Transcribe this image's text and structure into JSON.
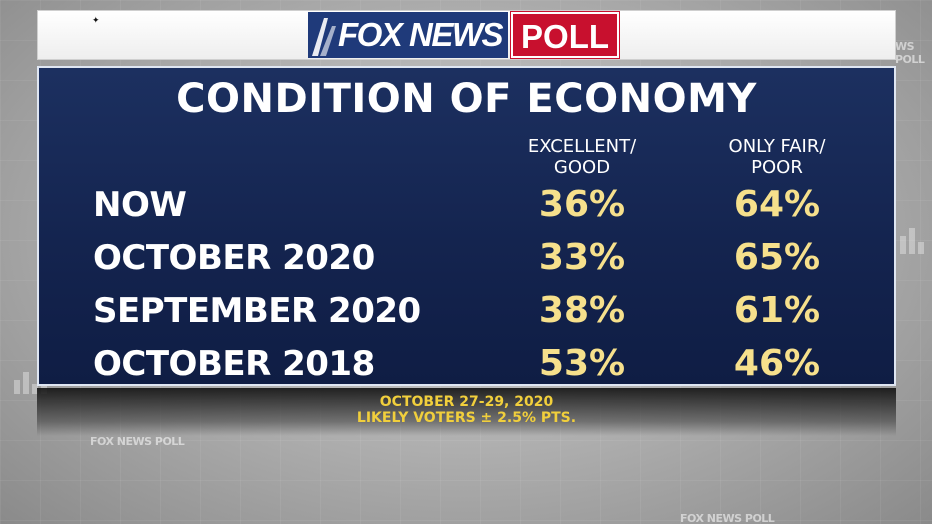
{
  "branding": {
    "logo_fox": "FOX NEWS",
    "logo_poll": "POLL",
    "colors": {
      "fox_blue": "#1f3a7a",
      "poll_red": "#c8102e",
      "value_yellow": "#f6e08c",
      "footer_yellow": "#f1cf3c"
    }
  },
  "chart_data": {
    "type": "table",
    "title": "CONDITION OF ECONOMY",
    "columns": [
      "EXCELLENT/ GOOD",
      "ONLY FAIR/ POOR"
    ],
    "rows": [
      {
        "label": "NOW",
        "values": [
          "36%",
          "64%"
        ]
      },
      {
        "label": "OCTOBER 2020",
        "values": [
          "33%",
          "65%"
        ]
      },
      {
        "label": "SEPTEMBER 2020",
        "values": [
          "38%",
          "61%"
        ]
      },
      {
        "label": "OCTOBER 2018",
        "values": [
          "53%",
          "46%"
        ]
      }
    ]
  },
  "footer": {
    "date": "OCTOBER 27-29, 2020",
    "sample": "LIKELY VOTERS ± 2.5% PTS."
  }
}
